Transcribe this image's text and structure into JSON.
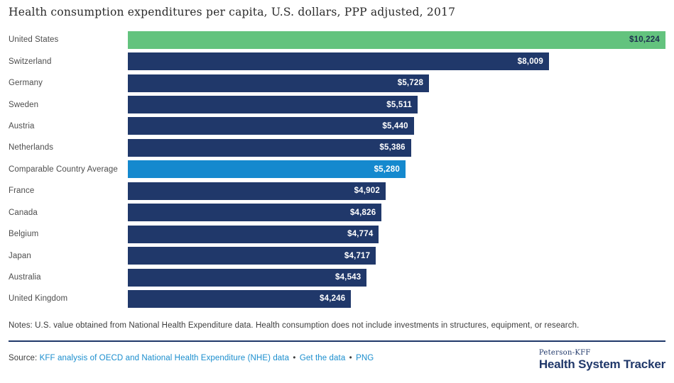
{
  "title": "Health consumption expenditures per capita, U.S. dollars, PPP adjusted, 2017",
  "chart_data": {
    "type": "bar",
    "orientation": "horizontal",
    "title": "Health consumption expenditures per capita, U.S. dollars, PPP adjusted, 2017",
    "xlabel": "",
    "ylabel": "",
    "xlim": [
      0,
      10224
    ],
    "grid": false,
    "legend": "none",
    "categories": [
      "United States",
      "Switzerland",
      "Germany",
      "Sweden",
      "Austria",
      "Netherlands",
      "Comparable Country Average",
      "France",
      "Canada",
      "Belgium",
      "Japan",
      "Australia",
      "United Kingdom"
    ],
    "values": [
      10224,
      8009,
      5728,
      5511,
      5440,
      5386,
      5280,
      4902,
      4826,
      4774,
      4717,
      4543,
      4246
    ],
    "value_labels": [
      "$10,224",
      "$8,009",
      "$5,728",
      "$5,511",
      "$5,440",
      "$5,386",
      "$5,280",
      "$4,902",
      "$4,826",
      "$4,774",
      "$4,717",
      "$4,543",
      "$4,246"
    ],
    "bar_styles": [
      "green",
      "navy",
      "navy",
      "navy",
      "navy",
      "navy",
      "azure",
      "navy",
      "navy",
      "navy",
      "navy",
      "navy",
      "navy"
    ]
  },
  "notes": "Notes: U.S. value obtained from National Health Expenditure data. Health consumption does not include investments in structures, equipment, or research.",
  "source": {
    "prefix": "Source:",
    "link_analysis": "KFF analysis of OECD and National Health Expenditure (NHE) data",
    "separator": "•",
    "link_get_data": "Get the data",
    "link_png": "PNG"
  },
  "logo": {
    "line1": "Peterson-KFF",
    "line2": "Health System Tracker"
  },
  "colors": {
    "green": "#63C37E",
    "navy": "#20386A",
    "azure": "#1589CE",
    "link": "#1B8ECE",
    "value_on_green": "#1e2f50",
    "value_on_dark": "#ffffff",
    "rule": "#20386A",
    "logo_navy": "#20386A"
  }
}
